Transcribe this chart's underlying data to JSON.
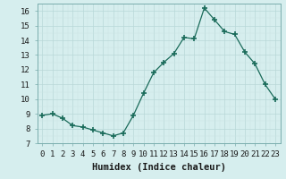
{
  "x": [
    0,
    1,
    2,
    3,
    4,
    5,
    6,
    7,
    8,
    9,
    10,
    11,
    12,
    13,
    14,
    15,
    16,
    17,
    18,
    19,
    20,
    21,
    22,
    23
  ],
  "y": [
    8.9,
    9.0,
    8.7,
    8.2,
    8.1,
    7.9,
    7.7,
    7.5,
    7.7,
    8.9,
    10.4,
    11.8,
    12.5,
    13.1,
    14.2,
    14.1,
    16.2,
    15.4,
    14.6,
    14.4,
    13.2,
    12.4,
    11.0,
    10.0
  ],
  "line_color": "#1a6b5a",
  "marker": "+",
  "marker_size": 4,
  "bg_color": "#d6eeee",
  "grid_major_color": "#b8d8d8",
  "grid_minor_color": "#cce4e4",
  "xlabel": "Humidex (Indice chaleur)",
  "xlim": [
    -0.5,
    23.5
  ],
  "ylim": [
    7,
    16.5
  ],
  "yticks": [
    7,
    8,
    9,
    10,
    11,
    12,
    13,
    14,
    15,
    16
  ],
  "xticks": [
    0,
    1,
    2,
    3,
    4,
    5,
    6,
    7,
    8,
    9,
    10,
    11,
    12,
    13,
    14,
    15,
    16,
    17,
    18,
    19,
    20,
    21,
    22,
    23
  ],
  "tick_label_fontsize": 6.5,
  "xlabel_fontsize": 7.5
}
